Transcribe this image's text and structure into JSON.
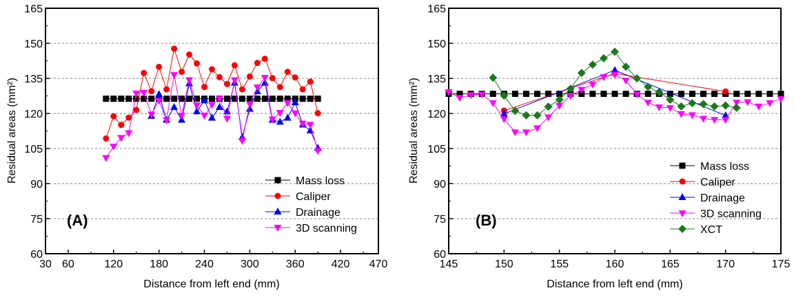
{
  "chart_data": [
    {
      "type": "line",
      "panel_label": "(A)",
      "xlabel": "Distance from left end (mm)",
      "ylabel": "Residual areas (mm²)",
      "xlim": [
        30,
        470
      ],
      "ylim": [
        60,
        165
      ],
      "xticks": [
        30,
        60,
        120,
        180,
        240,
        300,
        360,
        420,
        470
      ],
      "yticks": [
        60,
        75,
        90,
        105,
        120,
        135,
        150,
        165
      ],
      "grid": "horizontal dashed",
      "legend_position": "bottom-right",
      "series": [
        {
          "name": "Mass loss",
          "color": "#000000",
          "marker": "square",
          "x": [
            110,
            120,
            130,
            140,
            150,
            160,
            170,
            180,
            190,
            200,
            210,
            220,
            230,
            240,
            250,
            260,
            270,
            280,
            290,
            300,
            310,
            320,
            330,
            340,
            350,
            360,
            370,
            380,
            390
          ],
          "y": [
            126.3,
            126.3,
            126.3,
            126.3,
            126.3,
            126.3,
            126.3,
            126.3,
            126.3,
            126.3,
            126.3,
            126.3,
            126.3,
            126.3,
            126.3,
            126.3,
            126.3,
            126.3,
            126.3,
            126.3,
            126.3,
            126.3,
            126.3,
            126.3,
            126.3,
            126.3,
            126.3,
            126.3,
            126.3
          ]
        },
        {
          "name": "Caliper",
          "color": "#ff0000",
          "marker": "circle",
          "x": [
            110,
            120,
            130,
            140,
            150,
            160,
            170,
            180,
            190,
            200,
            210,
            220,
            230,
            240,
            250,
            260,
            270,
            280,
            290,
            300,
            310,
            320,
            330,
            340,
            350,
            360,
            370,
            380,
            390
          ],
          "y": [
            109.3,
            118.8,
            115.1,
            118.2,
            121.5,
            137.3,
            129.5,
            139.9,
            130.3,
            147.7,
            137.8,
            145.2,
            141.4,
            131.3,
            138.9,
            135.5,
            132.6,
            140.6,
            130.3,
            135.8,
            141.6,
            143.4,
            135.1,
            131.3,
            137.8,
            135.4,
            130.3,
            133.6,
            120.1
          ]
        },
        {
          "name": "Drainage",
          "color": "#0000ff",
          "marker": "triangle-up",
          "x": [
            170,
            180,
            190,
            200,
            210,
            220,
            230,
            240,
            250,
            260,
            270,
            280,
            290,
            300,
            310,
            320,
            330,
            340,
            350,
            360,
            370,
            380,
            390
          ],
          "y": [
            118.9,
            128.2,
            117.2,
            122.7,
            117.2,
            132.8,
            120.8,
            125.5,
            118.1,
            122.7,
            120.8,
            133.1,
            109.8,
            121.9,
            129.4,
            133.1,
            117.2,
            116.4,
            118.1,
            124.7,
            115.2,
            112.7,
            105.2
          ]
        },
        {
          "name": "3D scanning",
          "color": "#ff00ff",
          "marker": "triangle-down",
          "x": [
            110,
            120,
            130,
            140,
            150,
            160,
            170,
            180,
            190,
            200,
            210,
            220,
            230,
            240,
            250,
            260,
            270,
            280,
            290,
            300,
            310,
            320,
            330,
            340,
            350,
            360,
            370,
            380,
            390
          ],
          "y": [
            101.0,
            105.9,
            109.6,
            111.6,
            128.6,
            128.9,
            119.6,
            125.5,
            117.2,
            136.5,
            119.1,
            134.3,
            123.5,
            119.1,
            123.7,
            126.3,
            117.8,
            134.3,
            108.3,
            124.0,
            131.2,
            135.3,
            117.5,
            120.3,
            124.5,
            120.1,
            115.7,
            115.2,
            104.0
          ]
        }
      ]
    },
    {
      "type": "line",
      "panel_label": "(B)",
      "xlabel": "Distance from left end (mm)",
      "ylabel": "Residual areas (mm²)",
      "xlim": [
        145,
        175
      ],
      "ylim": [
        60,
        165
      ],
      "xticks": [
        145,
        150,
        155,
        160,
        165,
        170,
        175
      ],
      "yticks": [
        60,
        75,
        90,
        105,
        120,
        135,
        150,
        165
      ],
      "grid": "horizontal dashed",
      "legend_position": "bottom-right",
      "series": [
        {
          "name": "Mass loss",
          "color": "#000000",
          "marker": "square",
          "x": [
            145,
            146,
            147,
            148,
            149,
            150,
            151,
            152,
            153,
            154,
            155,
            156,
            157,
            158,
            159,
            160,
            161,
            162,
            163,
            164,
            165,
            166,
            167,
            168,
            169,
            170,
            171,
            172,
            173,
            174,
            175
          ],
          "y": [
            128.4,
            128.4,
            128.4,
            128.4,
            128.4,
            128.4,
            128.4,
            128.4,
            128.4,
            128.4,
            128.4,
            128.4,
            128.4,
            128.4,
            128.4,
            128.4,
            128.4,
            128.4,
            128.4,
            128.4,
            128.4,
            128.4,
            128.4,
            128.4,
            128.4,
            128.4,
            128.4,
            128.4,
            128.4,
            128.4,
            128.4
          ]
        },
        {
          "name": "Caliper",
          "color": "#ff0000",
          "marker": "circle",
          "x": [
            150,
            160,
            170
          ],
          "y": [
            121.2,
            137.1,
            129.4
          ]
        },
        {
          "name": "Drainage",
          "color": "#0000ff",
          "marker": "triangle-up",
          "x": [
            150,
            160,
            170
          ],
          "y": [
            119.8,
            138.5,
            119.1
          ]
        },
        {
          "name": "3D scanning",
          "color": "#ff00ff",
          "marker": "triangle-down",
          "x": [
            145,
            146,
            147,
            148,
            149,
            150,
            151,
            152,
            153,
            154,
            155,
            156,
            157,
            158,
            159,
            160,
            161,
            162,
            163,
            164,
            165,
            166,
            167,
            168,
            169,
            170,
            171,
            172,
            173,
            174,
            175
          ],
          "y": [
            129.2,
            126.7,
            127.9,
            128.2,
            124.5,
            117.6,
            112.0,
            112.0,
            113.7,
            118.4,
            123.3,
            127.6,
            130.2,
            132.4,
            135.6,
            136.7,
            134.1,
            128.2,
            124.7,
            122.7,
            122.4,
            119.8,
            119.3,
            117.8,
            117.3,
            117.3,
            124.7,
            124.9,
            123.0,
            124.5,
            126.3
          ]
        },
        {
          "name": "XCT",
          "color": "#1a7a1a",
          "marker": "diamond",
          "x": [
            149,
            150,
            151,
            152,
            153,
            154,
            155,
            156,
            157,
            158,
            159,
            160,
            161,
            162,
            163,
            164,
            165,
            166,
            167,
            168,
            169,
            170,
            171
          ],
          "y": [
            135.3,
            127.6,
            121.1,
            119.2,
            119.2,
            122.9,
            125.9,
            130.6,
            137.3,
            140.9,
            143.6,
            146.4,
            140.0,
            135.0,
            131.4,
            129.1,
            125.9,
            123.0,
            124.4,
            124.0,
            123.0,
            123.4,
            122.4
          ]
        }
      ]
    }
  ]
}
